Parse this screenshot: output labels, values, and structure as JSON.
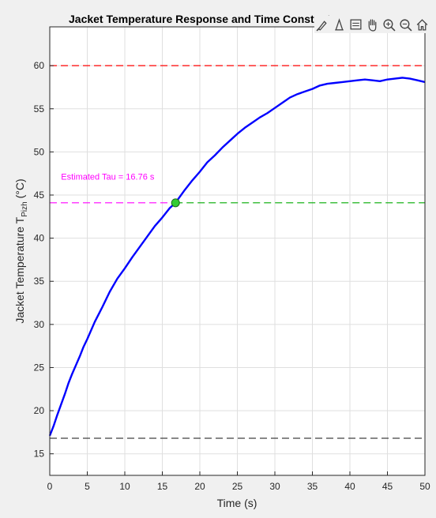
{
  "figure": {
    "title": "Jacket Temperature Response and Time Constant",
    "toolbar": [
      {
        "name": "brush-icon"
      },
      {
        "name": "pan-tool-icon"
      },
      {
        "name": "data-tips-icon"
      },
      {
        "name": "hand-icon"
      },
      {
        "name": "zoom-in-icon"
      },
      {
        "name": "zoom-out-icon"
      },
      {
        "name": "home-icon"
      }
    ]
  },
  "chart_data": {
    "type": "line",
    "title": "Jacket Temperature Response and Time Constant",
    "xlabel": "Time (s)",
    "ylabel_main": "Jacket Temperature T",
    "ylabel_sub": "Pizh",
    "ylabel_unit": " (°C)",
    "xlim": [
      0,
      50
    ],
    "ylim": [
      12.5,
      64.5
    ],
    "xticks": [
      0,
      5,
      10,
      15,
      20,
      25,
      30,
      35,
      40,
      45,
      50
    ],
    "yticks": [
      15,
      20,
      25,
      30,
      35,
      40,
      45,
      50,
      55,
      60
    ],
    "grid": true,
    "series": [
      {
        "color": "#0000ff",
        "x": [
          0,
          0.5,
          1,
          1.5,
          2,
          2.5,
          3,
          3.5,
          4,
          4.5,
          5,
          6,
          7,
          8,
          9,
          10,
          11,
          12,
          13,
          14,
          15,
          16,
          16.76,
          17,
          18,
          19,
          20,
          21,
          22,
          23,
          24,
          25,
          26,
          27,
          28,
          29,
          30,
          31,
          32,
          33,
          34,
          35,
          36,
          37,
          38,
          39,
          40,
          41,
          42,
          43,
          44,
          45,
          46,
          47,
          48,
          49,
          50
        ],
        "y": [
          17.1,
          18.2,
          19.5,
          20.7,
          21.9,
          23.2,
          24.3,
          25.3,
          26.3,
          27.4,
          28.3,
          30.3,
          32.0,
          33.8,
          35.3,
          36.5,
          37.8,
          39.0,
          40.2,
          41.4,
          42.4,
          43.5,
          44.1,
          44.4,
          45.6,
          46.7,
          47.7,
          48.8,
          49.6,
          50.5,
          51.3,
          52.1,
          52.8,
          53.4,
          54.0,
          54.5,
          55.1,
          55.7,
          56.3,
          56.7,
          57.0,
          57.3,
          57.7,
          57.9,
          58.0,
          58.1,
          58.2,
          58.3,
          58.4,
          58.3,
          58.2,
          58.4,
          58.5,
          58.6,
          58.5,
          58.3,
          58.1
        ]
      }
    ],
    "reference_lines": [
      {
        "y": 60.0,
        "color": "#ff0000"
      },
      {
        "y": 44.1,
        "color": "#00aa00"
      },
      {
        "y": 16.8,
        "color": "#404040"
      }
    ],
    "marker": {
      "x": 16.76,
      "y": 44.1,
      "color": "#33cc33"
    },
    "annotation": {
      "text": "Estimated Tau = 16.76 s",
      "x": 1.5,
      "y": 46.8,
      "color": "#ff00ff"
    }
  }
}
